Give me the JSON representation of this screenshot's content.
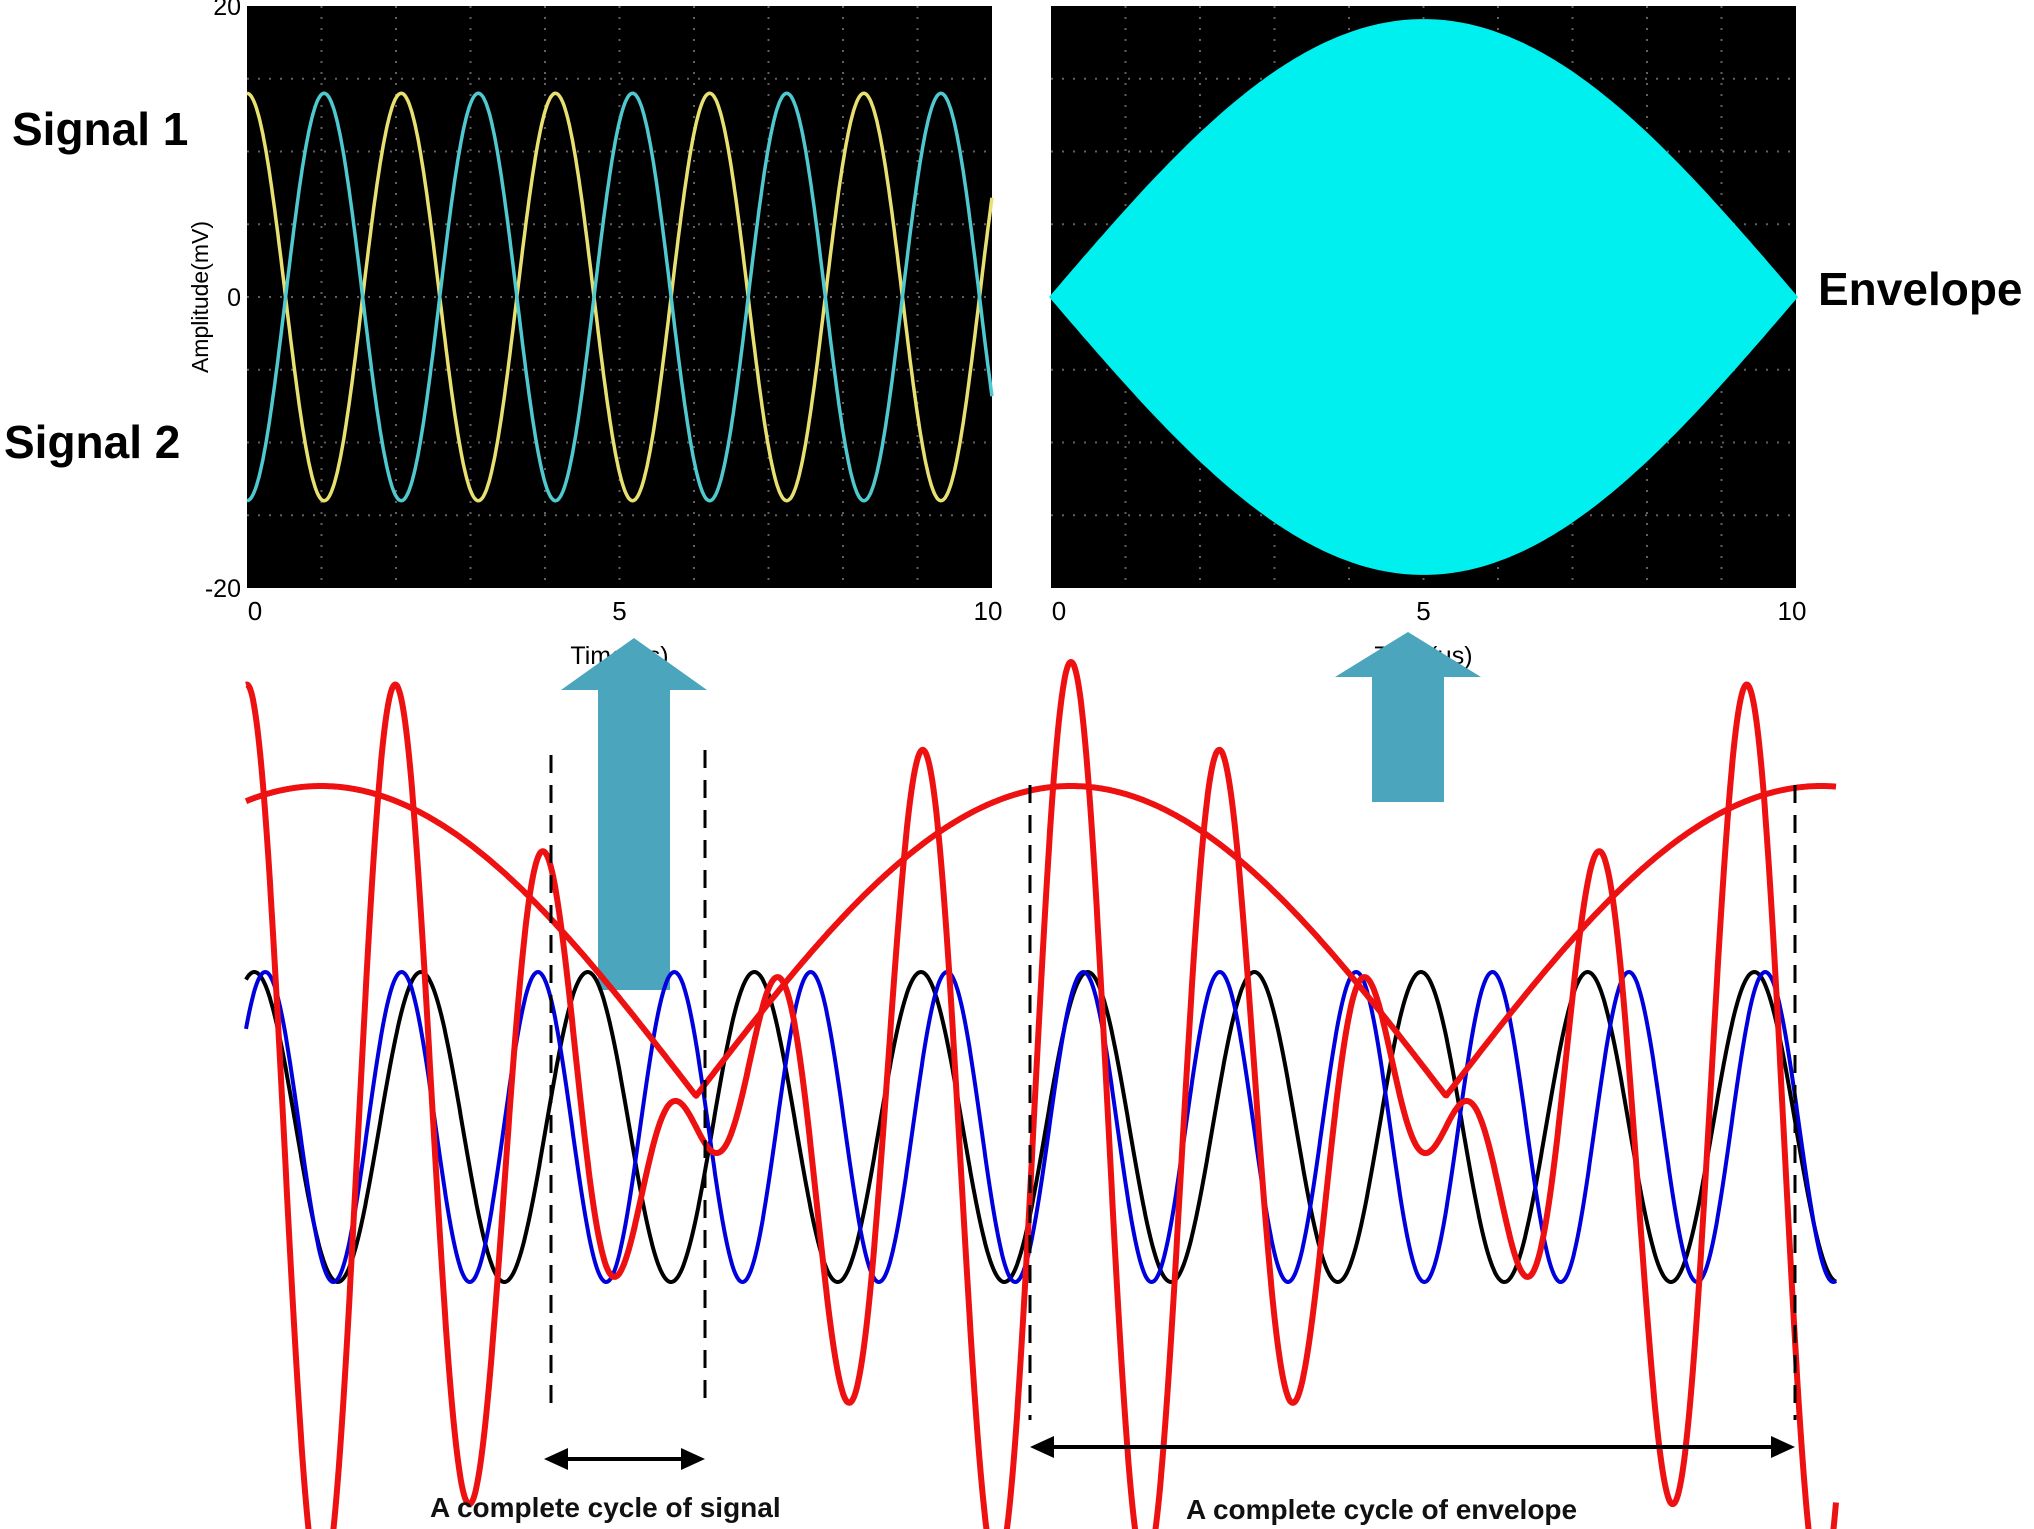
{
  "labels": {
    "signal1": "Signal 1",
    "signal2": "Signal 2",
    "envelope": "Envelope",
    "cycle_signal": "A complete cycle of signal",
    "cycle_envelope": "A complete cycle of envelope"
  },
  "colors": {
    "scope_bg": "#000000",
    "signal1": "#e8e070",
    "signal2": "#50c8d0",
    "envelope_fill": "#00f0f0",
    "wave_black": "#000000",
    "wave_blue": "#0000dd",
    "wave_red": "#ee1111",
    "arrow": "#4aa5bd"
  },
  "chart_data": [
    {
      "type": "line",
      "xlabel": "Time(μs)",
      "ylabel": "Amplitude(mV)",
      "xlim": [
        0,
        10
      ],
      "ylim": [
        -20,
        20
      ],
      "x_ticks": [
        "0",
        "5",
        "10"
      ],
      "y_ticks": [
        "20",
        "0",
        "-20"
      ],
      "grid": true,
      "series": [
        {
          "name": "Signal 1",
          "amplitude": 14,
          "period": 2.07,
          "phase": 0.0
        },
        {
          "name": "Signal 2",
          "amplitude": 14,
          "period": 2.07,
          "phase": 3.1416
        }
      ]
    },
    {
      "type": "area",
      "xlabel": "Time(μs)",
      "xlim": [
        0,
        10
      ],
      "ylim": [
        -20,
        20
      ],
      "x_ticks": [
        "0",
        "5",
        "10"
      ],
      "grid": true,
      "series": [
        {
          "name": "Envelope",
          "peak": 19,
          "peak_time": 5
        }
      ]
    },
    {
      "type": "line",
      "x_domain": [
        0,
        10.6
      ],
      "signal_period": 1,
      "envelope_period": 5,
      "series": [
        {
          "color": "black",
          "frequency": 0.9,
          "amplitude": 1
        },
        {
          "color": "blue",
          "frequency": 1.1,
          "amplitude": 1
        },
        {
          "color": "red",
          "label": "sum",
          "amplitude": 2
        },
        {
          "color": "red",
          "label": "envelope",
          "amplitude": 2
        }
      ]
    }
  ]
}
